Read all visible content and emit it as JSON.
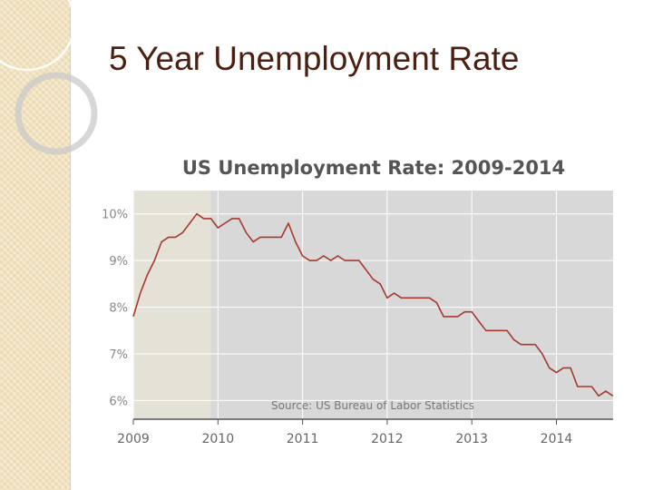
{
  "slide": {
    "title": "5 Year Unemployment Rate"
  },
  "chart_data": {
    "type": "line",
    "title": "US Unemployment Rate: 2009-2014",
    "annotation": "Source: US Bureau of Labor Statistics",
    "xlabel": "",
    "ylabel": "",
    "x_ticks": [
      "2009",
      "2010",
      "2011",
      "2012",
      "2013",
      "2014"
    ],
    "y_ticks": [
      "6%",
      "7%",
      "8%",
      "9%",
      "10%"
    ],
    "ylim": [
      5.6,
      10.5
    ],
    "xlim": [
      2009.0,
      2014.67
    ],
    "grid": true,
    "shaded_region": {
      "from": 2009.0,
      "to": 2009.917,
      "color": "#e4e2d6"
    },
    "plot_background": "#d8d8d8",
    "series": [
      {
        "color": "#a63a2e",
        "x": [
          2009.0,
          2009.083,
          2009.167,
          2009.25,
          2009.333,
          2009.417,
          2009.5,
          2009.583,
          2009.667,
          2009.75,
          2009.833,
          2009.917,
          2010.0,
          2010.083,
          2010.167,
          2010.25,
          2010.333,
          2010.417,
          2010.5,
          2010.583,
          2010.667,
          2010.75,
          2010.833,
          2010.917,
          2011.0,
          2011.083,
          2011.167,
          2011.25,
          2011.333,
          2011.417,
          2011.5,
          2011.583,
          2011.667,
          2011.75,
          2011.833,
          2011.917,
          2012.0,
          2012.083,
          2012.167,
          2012.25,
          2012.333,
          2012.417,
          2012.5,
          2012.583,
          2012.667,
          2012.75,
          2012.833,
          2012.917,
          2013.0,
          2013.083,
          2013.167,
          2013.25,
          2013.333,
          2013.417,
          2013.5,
          2013.583,
          2013.667,
          2013.75,
          2013.833,
          2013.917,
          2014.0,
          2014.083,
          2014.167,
          2014.25,
          2014.333,
          2014.417,
          2014.5,
          2014.583,
          2014.667
        ],
        "values": [
          7.8,
          8.3,
          8.7,
          9.0,
          9.4,
          9.5,
          9.5,
          9.6,
          9.8,
          10.0,
          9.9,
          9.9,
          9.7,
          9.8,
          9.9,
          9.9,
          9.6,
          9.4,
          9.5,
          9.5,
          9.5,
          9.5,
          9.8,
          9.4,
          9.1,
          9.0,
          9.0,
          9.1,
          9.0,
          9.1,
          9.0,
          9.0,
          9.0,
          8.8,
          8.6,
          8.5,
          8.2,
          8.3,
          8.2,
          8.2,
          8.2,
          8.2,
          8.2,
          8.1,
          7.8,
          7.8,
          7.8,
          7.9,
          7.9,
          7.7,
          7.5,
          7.5,
          7.5,
          7.5,
          7.3,
          7.2,
          7.2,
          7.2,
          7.0,
          6.7,
          6.6,
          6.7,
          6.7,
          6.3,
          6.3,
          6.3,
          6.1,
          6.2,
          6.1
        ]
      }
    ]
  }
}
